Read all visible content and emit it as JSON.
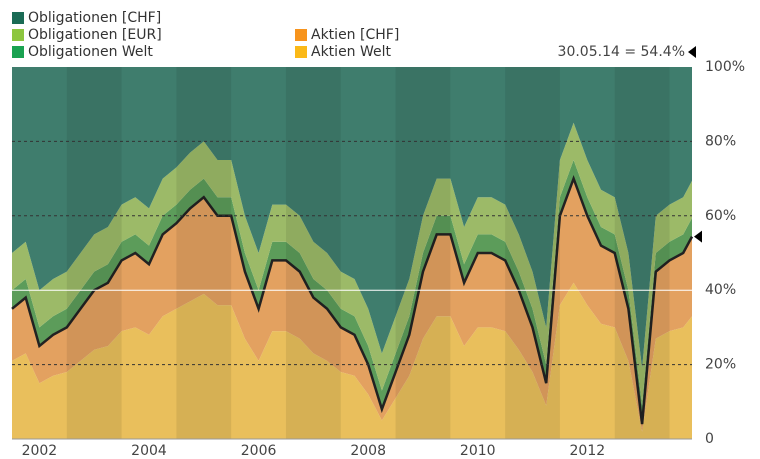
{
  "chart_data": {
    "type": "stacked-area",
    "annotation": "30.05.14 = 54.4%",
    "x": [
      2002,
      2002.25,
      2002.5,
      2002.75,
      2003,
      2003.25,
      2003.5,
      2003.75,
      2004,
      2004.25,
      2004.5,
      2004.75,
      2005,
      2005.25,
      2005.5,
      2005.75,
      2006,
      2006.25,
      2006.5,
      2006.75,
      2007,
      2007.25,
      2007.5,
      2007.75,
      2008,
      2008.25,
      2008.5,
      2008.75,
      2009,
      2009.25,
      2009.5,
      2009.75,
      2010,
      2010.25,
      2010.5,
      2010.75,
      2011,
      2011.25,
      2011.5,
      2011.75,
      2012,
      2012.25,
      2012.5,
      2012.75,
      2013,
      2013.25,
      2013.5,
      2013.75,
      2014,
      2014.25,
      2014.41
    ],
    "series": [
      {
        "name": "Aktien Welt",
        "color": "#fbb917",
        "area_color": "#e9bf5c",
        "values": [
          21,
          23,
          15,
          17,
          18,
          21,
          24,
          25,
          29,
          30,
          28,
          33,
          35,
          37,
          39,
          36,
          36,
          27,
          21,
          29,
          29,
          27,
          23,
          21,
          18,
          17,
          12,
          5,
          11,
          17,
          27,
          33,
          33,
          25,
          30,
          30,
          29,
          24,
          18,
          9,
          36,
          42,
          36,
          31,
          30,
          21,
          2,
          27,
          29,
          30,
          33
        ]
      },
      {
        "name": "Aktien [CHF]",
        "color": "#f7941d",
        "area_color": "#e3a160",
        "values": [
          14,
          15,
          10,
          11,
          12,
          14,
          16,
          17,
          19,
          20,
          19,
          22,
          23,
          25,
          26,
          24,
          24,
          18,
          14,
          19,
          19,
          18,
          15,
          14,
          12,
          11,
          8,
          3,
          7,
          11,
          18,
          22,
          22,
          17,
          20,
          20,
          19,
          16,
          12,
          6,
          24,
          28,
          24,
          21,
          20,
          14,
          2,
          18,
          19,
          20,
          21.4
        ]
      },
      {
        "name": "Obligationen Welt",
        "color": "#1aa251",
        "area_color": "#5c9c5a",
        "values": [
          5,
          5,
          5,
          5,
          5,
          5,
          5,
          5,
          5,
          5,
          5,
          5,
          5,
          5,
          5,
          5,
          5,
          5,
          5,
          5,
          5,
          5,
          5,
          5,
          5,
          5,
          5,
          5,
          5,
          5,
          5,
          5,
          5,
          5,
          5,
          5,
          5,
          5,
          5,
          5,
          5,
          5,
          5,
          5,
          5,
          5,
          5,
          5,
          5,
          5,
          5
        ]
      },
      {
        "name": "Obligationen [EUR]",
        "color": "#8dc63f",
        "area_color": "#9cba68",
        "values": [
          10,
          10,
          10,
          10,
          10,
          10,
          10,
          10,
          10,
          10,
          10,
          10,
          10,
          10,
          10,
          10,
          10,
          10,
          10,
          10,
          10,
          10,
          10,
          10,
          10,
          10,
          10,
          10,
          10,
          10,
          10,
          10,
          10,
          10,
          10,
          10,
          10,
          10,
          10,
          10,
          10,
          10,
          10,
          10,
          10,
          10,
          10,
          10,
          10,
          10,
          10
        ]
      },
      {
        "name": "Obligationen [CHF]",
        "color": "#1a6b55",
        "area_color": "#3f7d6d",
        "values": [
          50,
          47,
          60,
          57,
          55,
          50,
          45,
          43,
          37,
          35,
          38,
          30,
          27,
          23,
          20,
          25,
          25,
          40,
          50,
          37,
          37,
          40,
          47,
          50,
          55,
          57,
          65,
          77,
          67,
          57,
          40,
          30,
          30,
          43,
          35,
          35,
          37,
          45,
          55,
          70,
          25,
          15,
          25,
          33,
          35,
          50,
          81,
          40,
          37,
          35,
          30.6
        ]
      }
    ],
    "xlim": [
      2002,
      2014.41
    ],
    "xticks": [
      {
        "value": 2002.5,
        "label": "2002"
      },
      {
        "value": 2004.5,
        "label": "2004"
      },
      {
        "value": 2006.5,
        "label": "2006"
      },
      {
        "value": 2008.5,
        "label": "2008"
      },
      {
        "value": 2010.5,
        "label": "2010"
      },
      {
        "value": 2012.5,
        "label": "2012"
      }
    ],
    "ylim": [
      0,
      100
    ],
    "yticks": [
      0,
      {
        "value": 20,
        "label": "20%"
      },
      {
        "value": 40,
        "label": "40%"
      },
      {
        "value": 60,
        "label": "60%"
      },
      {
        "value": 80,
        "label": "80%"
      },
      {
        "value": 100,
        "label": "100%"
      }
    ],
    "grid": true
  }
}
